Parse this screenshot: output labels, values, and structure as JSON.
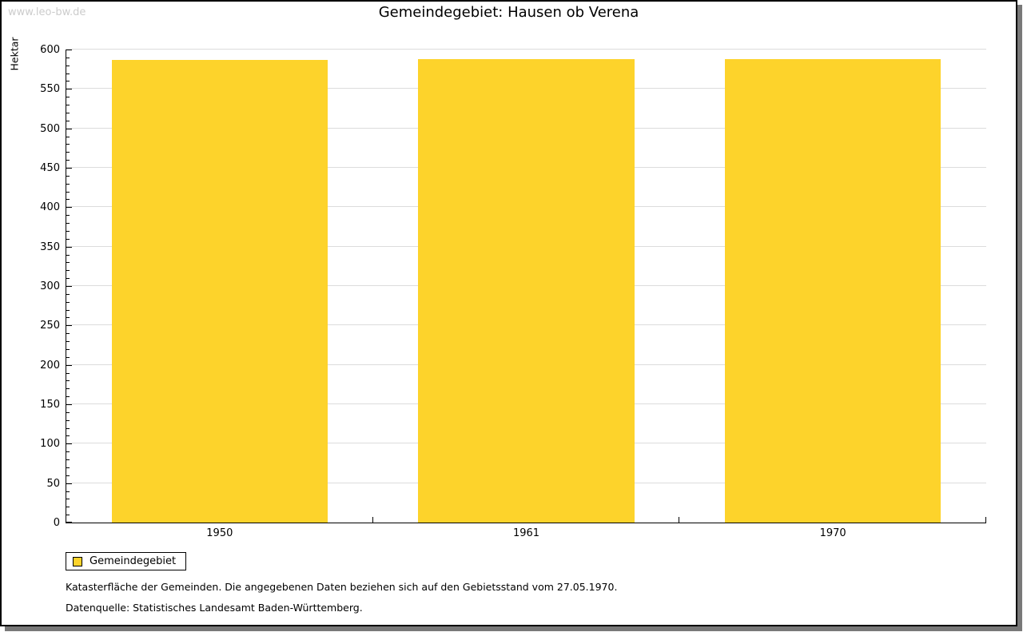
{
  "watermark": "www.leo-bw.de",
  "title": "Gemeindegebiet: Hausen ob Verena",
  "chart_data": {
    "type": "bar",
    "title": "Gemeindegebiet: Hausen ob Verena",
    "categories": [
      "1950",
      "1961",
      "1970"
    ],
    "series": [
      {
        "name": "Gemeindegebiet",
        "values": [
          587,
          588,
          588
        ]
      }
    ],
    "xlabel": "",
    "ylabel": "Hektar",
    "ylim": [
      0,
      600
    ],
    "y_major_step": 50,
    "y_minor_step": 10,
    "grid": true,
    "legend_position": "bottom-left",
    "bar_color": "#FDD32B"
  },
  "legend": {
    "items": [
      {
        "label": "Gemeindegebiet",
        "color": "#FDD32B"
      }
    ]
  },
  "footer": {
    "line1": "Katasterfläche der Gemeinden. Die angegebenen Daten beziehen sich auf den Gebietsstand vom 27.05.1970.",
    "line2": "Datenquelle: Statistisches Landesamt Baden-Württemberg."
  },
  "colors": {
    "bar": "#FDD32B",
    "gridline": "#dcdcdc",
    "axis": "#000000",
    "watermark": "#cccccc",
    "shadow": "#787878",
    "background": "#ffffff"
  }
}
